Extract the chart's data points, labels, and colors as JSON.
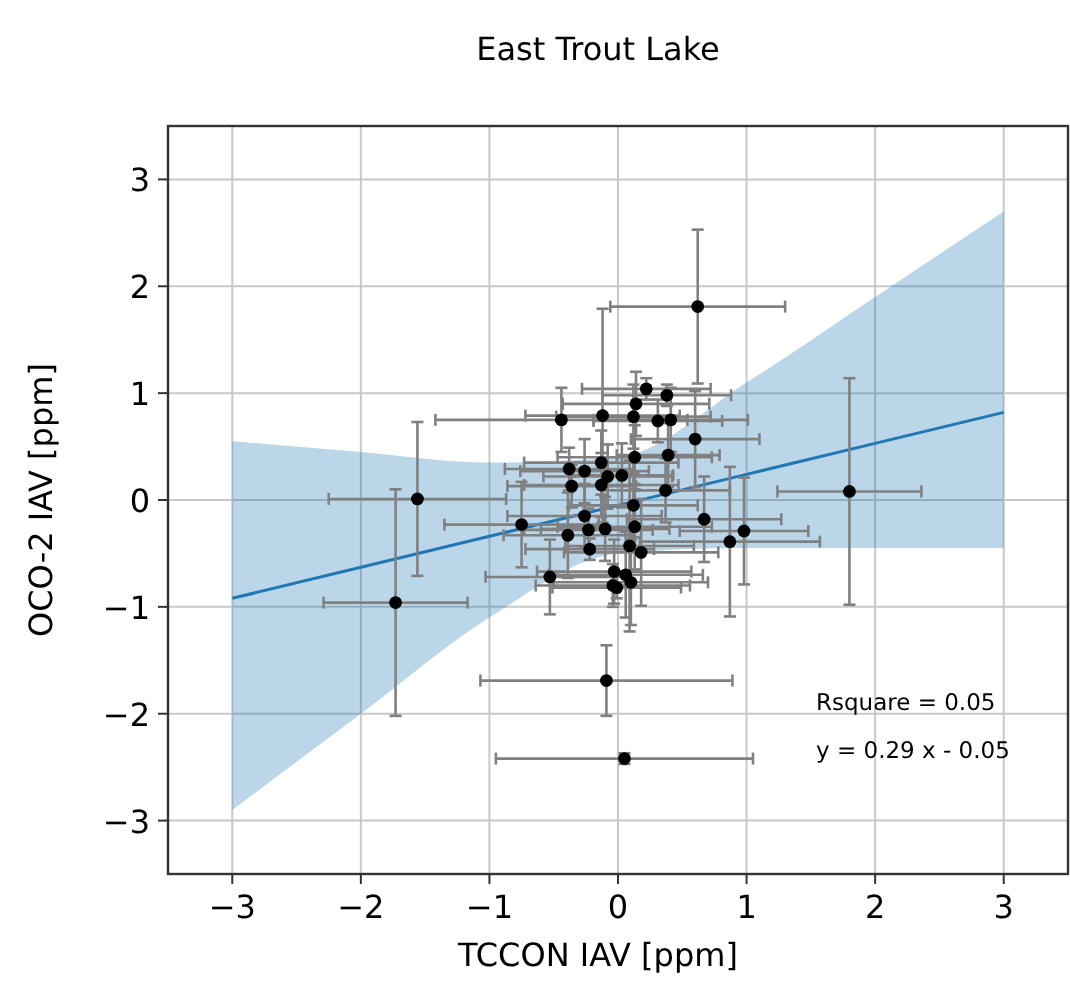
{
  "chart_data": {
    "type": "scatter",
    "title": "East Trout Lake",
    "xlabel": "TCCON IAV [ppm]",
    "ylabel": "OCO-2 IAV [ppm]",
    "xlim": [
      -3.5,
      3.5
    ],
    "ylim": [
      -3.5,
      3.5
    ],
    "xticks": [
      -3,
      -2,
      -1,
      0,
      1,
      2,
      3
    ],
    "yticks": [
      -3,
      -2,
      -1,
      0,
      1,
      2,
      3
    ],
    "grid": true,
    "annotations": [
      "Rsquare = 0.05",
      "y = 0.29 x - 0.05"
    ],
    "series": [
      {
        "type": "line",
        "color": "#1f77b4",
        "marker": "none",
        "line_style": "solid",
        "x": [
          -3,
          -2,
          -1,
          0,
          1,
          2,
          3
        ],
        "values": [
          -0.92,
          -0.63,
          -0.34,
          -0.05,
          0.24,
          0.53,
          0.82
        ],
        "lower": [
          -2.9,
          -2.0,
          -1.1,
          -0.5,
          -0.45,
          -0.45,
          -0.45
        ],
        "upper": [
          0.55,
          0.45,
          0.35,
          0.4,
          1.1,
          1.9,
          2.7
        ]
      },
      {
        "color": "#000000",
        "marker": "circle",
        "x": [
          0.62,
          0.22,
          0.14,
          0.38,
          -0.44,
          -0.12,
          0.12,
          0.31,
          0.41,
          0.6,
          0.39,
          0.13,
          -0.13,
          -0.38,
          -0.26,
          0.03,
          -0.08,
          -0.36,
          -0.13,
          0.37,
          0.12,
          -1.56,
          -1.73,
          1.8,
          -0.75,
          -0.26,
          -0.23,
          -0.1,
          -0.39,
          0.13,
          0.67,
          0.98,
          0.87,
          -0.22,
          0.09,
          0.18,
          -0.53,
          -0.03,
          0.06,
          -0.04,
          -0.01,
          0.1,
          -0.09,
          0.05
        ],
        "values": [
          1.81,
          1.04,
          0.9,
          0.98,
          0.75,
          0.79,
          0.78,
          0.74,
          0.75,
          0.57,
          0.42,
          0.4,
          0.35,
          0.29,
          0.27,
          0.23,
          0.22,
          0.13,
          0.14,
          0.09,
          -0.05,
          0.01,
          -0.96,
          0.08,
          -0.23,
          -0.15,
          -0.28,
          -0.27,
          -0.33,
          -0.25,
          -0.18,
          -0.29,
          -0.39,
          -0.46,
          -0.43,
          -0.49,
          -0.72,
          -0.67,
          -0.7,
          -0.8,
          -0.82,
          -0.77,
          -1.69,
          -2.42
        ],
        "errors": [
          0.72,
          0.1,
          0.3,
          0.1,
          0.3,
          1.0,
          0.3,
          0.2,
          0.3,
          0.45,
          0.3,
          0.3,
          0.3,
          0.2,
          0.3,
          0.3,
          0.3,
          0.2,
          0.3,
          0.3,
          0.3,
          0.72,
          1.06,
          1.06,
          0.4,
          0.3,
          0.2,
          0.3,
          0.4,
          0.4,
          0.4,
          0.5,
          0.7,
          0.1,
          0.8,
          0.5,
          0.35,
          0.3,
          0.4,
          0.2,
          0.1,
          0.4,
          0.33,
          0.05
        ],
        "xerrors": [
          0.68,
          0.5,
          0.57,
          0.5,
          0.98,
          0.6,
          0.6,
          0.5,
          0.6,
          0.5,
          0.4,
          0.6,
          0.6,
          0.5,
          0.5,
          0.4,
          0.5,
          0.5,
          0.6,
          0.5,
          0.5,
          0.69,
          0.56,
          0.56,
          0.6,
          0.6,
          0.5,
          0.5,
          0.5,
          0.6,
          0.6,
          0.5,
          0.7,
          0.5,
          0.5,
          0.6,
          0.5,
          0.6,
          0.6,
          0.6,
          0.5,
          0.6,
          0.98,
          1.0
        ]
      }
    ]
  }
}
